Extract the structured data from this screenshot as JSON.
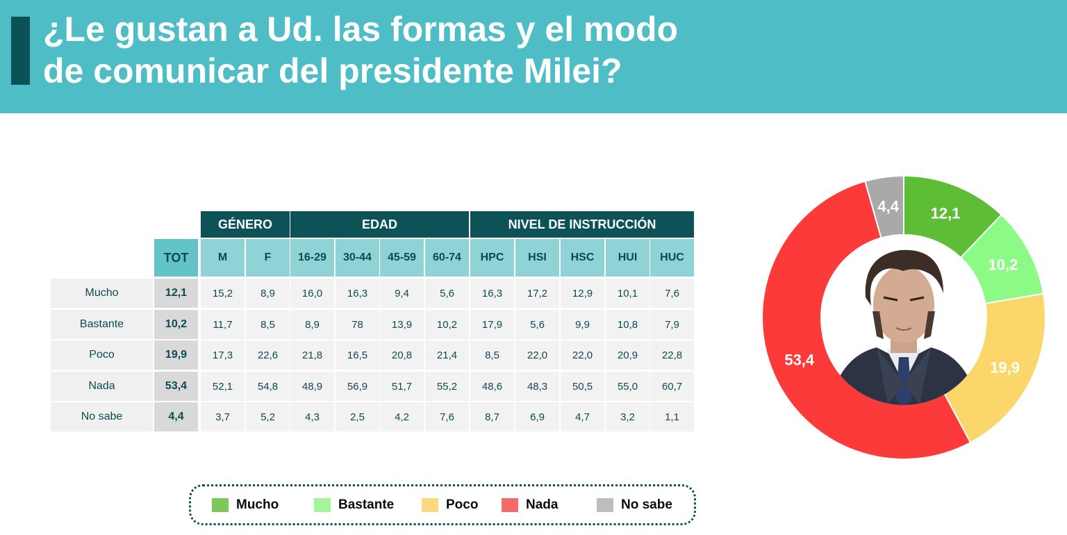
{
  "title": {
    "line1": "¿Le gustan a Ud. las formas y el modo",
    "line2": "de comunicar del presidente Milei?"
  },
  "table": {
    "groups": [
      "GÉNERO",
      "EDAD",
      "NIVEL DE INSTRUCCIÓN"
    ],
    "columns": [
      "TOT",
      "M",
      "F",
      "16-29",
      "30-44",
      "45-59",
      "60-74",
      "HPC",
      "HSI",
      "HSC",
      "HUI",
      "HUC"
    ],
    "rows": [
      {
        "label": "Mucho",
        "values": [
          "12,1",
          "15,2",
          "8,9",
          "16,0",
          "16,3",
          "9,4",
          "5,6",
          "16,3",
          "17,2",
          "12,9",
          "10,1",
          "7,6"
        ]
      },
      {
        "label": "Bastante",
        "values": [
          "10,2",
          "11,7",
          "8,5",
          "8,9",
          "78",
          "13,9",
          "10,2",
          "17,9",
          "5,6",
          "9,9",
          "10,8",
          "7,9"
        ]
      },
      {
        "label": "Poco",
        "values": [
          "19,9",
          "17,3",
          "22,6",
          "21,8",
          "16,5",
          "20,8",
          "21,4",
          "8,5",
          "22,0",
          "22,0",
          "20,9",
          "22,8"
        ]
      },
      {
        "label": "Nada",
        "values": [
          "53,4",
          "52,1",
          "54,8",
          "48,9",
          "56,9",
          "51,7",
          "55,2",
          "48,6",
          "48,3",
          "50,5",
          "55,0",
          "60,7"
        ]
      },
      {
        "label": "No sabe",
        "values": [
          "4,4",
          "3,7",
          "5,2",
          "4,3",
          "2,5",
          "4,2",
          "7,6",
          "8,7",
          "6,9",
          "4,7",
          "3,2",
          "1,1"
        ]
      }
    ]
  },
  "legend": [
    {
      "label": "Mucho",
      "color": "#7cc95a"
    },
    {
      "label": "Bastante",
      "color": "#a4f59a"
    },
    {
      "label": "Poco",
      "color": "#fbd97f"
    },
    {
      "label": "Nada",
      "color": "#f36b6b"
    },
    {
      "label": "No sabe",
      "color": "#bdbdbd"
    }
  ],
  "chart_data": {
    "type": "pie",
    "categories": [
      "Mucho",
      "Bastante",
      "Poco",
      "Nada",
      "No sabe"
    ],
    "values": [
      12.1,
      10.2,
      19.9,
      53.4,
      4.4
    ],
    "labels": [
      "12,1",
      "10,2",
      "19,9",
      "53,4",
      "4,4"
    ],
    "colors": [
      "#5dbd34",
      "#8cfb86",
      "#fbd76b",
      "#fc3a3a",
      "#a9a9a9"
    ],
    "donut": true,
    "center_image": "portrait-photo",
    "legend_position": "bottom-left"
  }
}
